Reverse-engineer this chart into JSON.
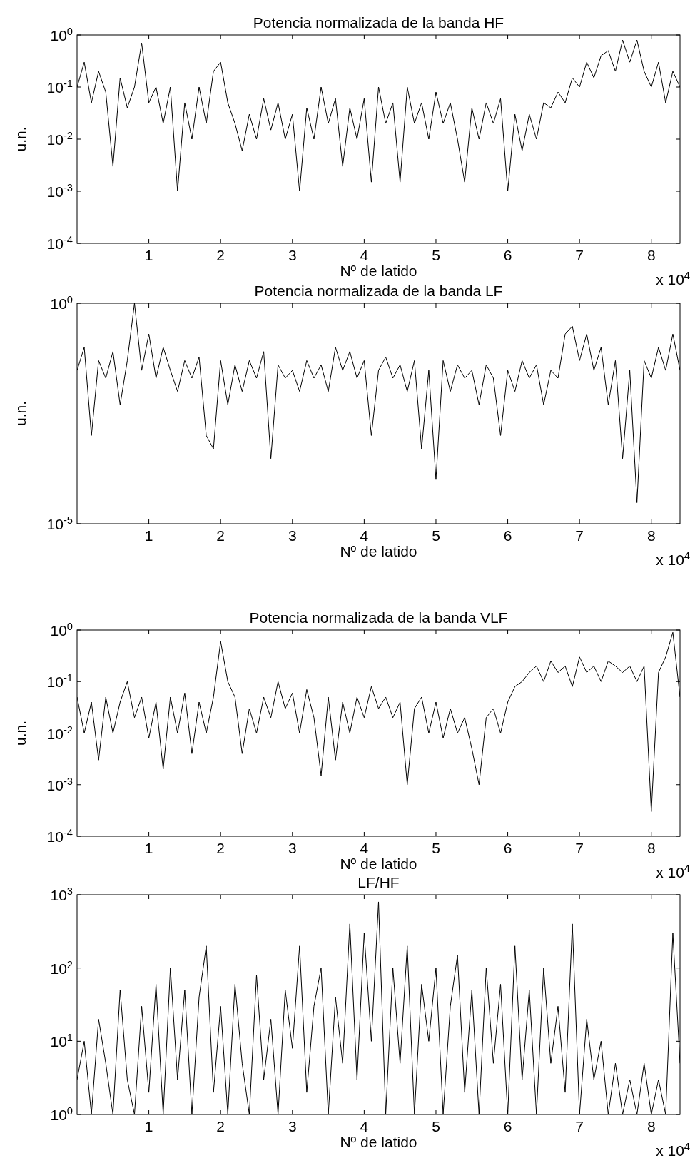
{
  "chart_data": [
    {
      "type": "line",
      "title": "Potencia normalizada de la banda HF",
      "xlabel": "Nº de latido",
      "ylabel": "u.n.",
      "log": "y",
      "color": "#000000",
      "annotations": [
        "x 10$^{4}$"
      ],
      "xlim": [
        0,
        8.4
      ],
      "xticks": [
        1,
        2,
        3,
        4,
        5,
        6,
        7,
        8
      ],
      "ylim": [
        0.0001,
        1
      ],
      "yticks": [
        {
          "value": 0.0001,
          "label": "10$^{-4}$"
        },
        {
          "value": 0.001,
          "label": "10$^{-3}$"
        },
        {
          "value": 0.01,
          "label": "10$^{-2}$"
        },
        {
          "value": 0.1,
          "label": "10$^{-1}$"
        },
        {
          "value": 1,
          "label": "10$^{0}$"
        }
      ],
      "x": [
        0,
        0.1,
        0.2,
        0.3,
        0.4,
        0.5,
        0.6,
        0.7,
        0.8,
        0.9,
        1,
        1.1,
        1.2,
        1.3,
        1.4,
        1.5,
        1.6,
        1.7,
        1.8,
        1.9,
        2,
        2.1,
        2.2,
        2.3,
        2.4,
        2.5,
        2.6,
        2.7,
        2.8,
        2.9,
        3,
        3.1,
        3.2,
        3.3,
        3.4,
        3.5,
        3.6,
        3.7,
        3.8,
        3.9,
        4,
        4.1,
        4.2,
        4.3,
        4.4,
        4.5,
        4.6,
        4.7,
        4.8,
        4.9,
        5,
        5.1,
        5.2,
        5.3,
        5.4,
        5.5,
        5.6,
        5.7,
        5.8,
        5.9,
        6,
        6.1,
        6.2,
        6.3,
        6.4,
        6.5,
        6.6,
        6.7,
        6.8,
        6.9,
        7,
        7.1,
        7.2,
        7.3,
        7.4,
        7.5,
        7.6,
        7.7,
        7.8,
        7.9,
        8,
        8.1,
        8.2,
        8.3,
        8.4
      ],
      "values": [
        0.1,
        0.3,
        0.05,
        0.2,
        0.08,
        0.003,
        0.15,
        0.04,
        0.1,
        0.7,
        0.05,
        0.1,
        0.02,
        0.1,
        0.001,
        0.05,
        0.01,
        0.1,
        0.02,
        0.2,
        0.3,
        0.05,
        0.02,
        0.006,
        0.03,
        0.01,
        0.06,
        0.015,
        0.05,
        0.01,
        0.03,
        0.001,
        0.04,
        0.01,
        0.1,
        0.02,
        0.06,
        0.003,
        0.04,
        0.01,
        0.06,
        0.0015,
        0.1,
        0.02,
        0.05,
        0.0015,
        0.1,
        0.02,
        0.05,
        0.01,
        0.08,
        0.02,
        0.05,
        0.01,
        0.0015,
        0.04,
        0.01,
        0.05,
        0.02,
        0.06,
        0.001,
        0.03,
        0.006,
        0.03,
        0.01,
        0.05,
        0.04,
        0.08,
        0.05,
        0.15,
        0.1,
        0.3,
        0.15,
        0.4,
        0.5,
        0.2,
        0.8,
        0.3,
        0.8,
        0.2,
        0.1,
        0.3,
        0.05,
        0.2,
        0.1
      ]
    },
    {
      "type": "line",
      "title": "Potencia normalizada de la banda LF",
      "xlabel": "Nº de latido",
      "ylabel": "u.n.",
      "log": "y",
      "color": "#000000",
      "annotations": [
        "x 10$^{4}$"
      ],
      "xlim": [
        0,
        8.4
      ],
      "xticks": [
        1,
        2,
        3,
        4,
        5,
        6,
        7,
        8
      ],
      "ylim": [
        1e-05,
        1
      ],
      "yticks": [
        {
          "value": 1e-05,
          "label": "10$^{-5}$"
        },
        {
          "value": 1,
          "label": "10$^{0}$"
        }
      ],
      "x": [
        0,
        0.1,
        0.2,
        0.3,
        0.4,
        0.5,
        0.6,
        0.7,
        0.8,
        0.9,
        1,
        1.1,
        1.2,
        1.3,
        1.4,
        1.5,
        1.6,
        1.7,
        1.8,
        1.9,
        2,
        2.1,
        2.2,
        2.3,
        2.4,
        2.5,
        2.6,
        2.7,
        2.8,
        2.9,
        3,
        3.1,
        3.2,
        3.3,
        3.4,
        3.5,
        3.6,
        3.7,
        3.8,
        3.9,
        4,
        4.1,
        4.2,
        4.3,
        4.4,
        4.5,
        4.6,
        4.7,
        4.8,
        4.9,
        5,
        5.1,
        5.2,
        5.3,
        5.4,
        5.5,
        5.6,
        5.7,
        5.8,
        5.9,
        6,
        6.1,
        6.2,
        6.3,
        6.4,
        6.5,
        6.6,
        6.7,
        6.8,
        6.9,
        7,
        7.1,
        7.2,
        7.3,
        7.4,
        7.5,
        7.6,
        7.7,
        7.8,
        7.9,
        8,
        8.1,
        8.2,
        8.3,
        8.4
      ],
      "values": [
        0.03,
        0.1,
        0.001,
        0.05,
        0.02,
        0.08,
        0.005,
        0.05,
        1,
        0.03,
        0.2,
        0.02,
        0.1,
        0.03,
        0.01,
        0.05,
        0.02,
        0.06,
        0.001,
        0.0005,
        0.05,
        0.005,
        0.04,
        0.01,
        0.05,
        0.02,
        0.08,
        0.0003,
        0.04,
        0.02,
        0.03,
        0.01,
        0.05,
        0.02,
        0.04,
        0.01,
        0.1,
        0.03,
        0.08,
        0.02,
        0.05,
        0.001,
        0.03,
        0.06,
        0.02,
        0.04,
        0.01,
        0.05,
        0.0005,
        0.03,
        0.0001,
        0.05,
        0.01,
        0.04,
        0.02,
        0.03,
        0.005,
        0.04,
        0.02,
        0.001,
        0.03,
        0.01,
        0.05,
        0.02,
        0.04,
        0.005,
        0.03,
        0.02,
        0.2,
        0.3,
        0.05,
        0.2,
        0.03,
        0.1,
        0.005,
        0.05,
        0.0003,
        0.03,
        3e-05,
        0.05,
        0.02,
        0.1,
        0.03,
        0.2,
        0.03
      ]
    },
    {
      "type": "line",
      "title": "Potencia normalizada de la banda VLF",
      "xlabel": "Nº de latido",
      "ylabel": "u.n.",
      "log": "y",
      "color": "#000000",
      "annotations": [
        "x 10$^{4}$"
      ],
      "xlim": [
        0,
        8.4
      ],
      "xticks": [
        1,
        2,
        3,
        4,
        5,
        6,
        7,
        8
      ],
      "ylim": [
        0.0001,
        1
      ],
      "yticks": [
        {
          "value": 0.0001,
          "label": "10$^{-4}$"
        },
        {
          "value": 0.001,
          "label": "10$^{-3}$"
        },
        {
          "value": 0.01,
          "label": "10$^{-2}$"
        },
        {
          "value": 0.1,
          "label": "10$^{-1}$"
        },
        {
          "value": 1,
          "label": "10$^{0}$"
        }
      ],
      "x": [
        0,
        0.1,
        0.2,
        0.3,
        0.4,
        0.5,
        0.6,
        0.7,
        0.8,
        0.9,
        1,
        1.1,
        1.2,
        1.3,
        1.4,
        1.5,
        1.6,
        1.7,
        1.8,
        1.9,
        2,
        2.1,
        2.2,
        2.3,
        2.4,
        2.5,
        2.6,
        2.7,
        2.8,
        2.9,
        3,
        3.1,
        3.2,
        3.3,
        3.4,
        3.5,
        3.6,
        3.7,
        3.8,
        3.9,
        4,
        4.1,
        4.2,
        4.3,
        4.4,
        4.5,
        4.6,
        4.7,
        4.8,
        4.9,
        5,
        5.1,
        5.2,
        5.3,
        5.4,
        5.5,
        5.6,
        5.7,
        5.8,
        5.9,
        6,
        6.1,
        6.2,
        6.3,
        6.4,
        6.5,
        6.6,
        6.7,
        6.8,
        6.9,
        7,
        7.1,
        7.2,
        7.3,
        7.4,
        7.5,
        7.6,
        7.7,
        7.8,
        7.9,
        8,
        8.1,
        8.2,
        8.3,
        8.4
      ],
      "values": [
        0.05,
        0.01,
        0.04,
        0.003,
        0.05,
        0.01,
        0.04,
        0.1,
        0.02,
        0.05,
        0.008,
        0.04,
        0.002,
        0.05,
        0.01,
        0.06,
        0.004,
        0.04,
        0.01,
        0.05,
        0.6,
        0.1,
        0.05,
        0.004,
        0.03,
        0.01,
        0.05,
        0.02,
        0.1,
        0.03,
        0.06,
        0.01,
        0.07,
        0.02,
        0.0015,
        0.05,
        0.003,
        0.04,
        0.01,
        0.05,
        0.02,
        0.08,
        0.03,
        0.05,
        0.02,
        0.04,
        0.001,
        0.03,
        0.05,
        0.01,
        0.04,
        0.008,
        0.03,
        0.01,
        0.02,
        0.005,
        0.001,
        0.02,
        0.03,
        0.01,
        0.04,
        0.08,
        0.1,
        0.15,
        0.2,
        0.1,
        0.25,
        0.15,
        0.2,
        0.08,
        0.3,
        0.15,
        0.2,
        0.1,
        0.25,
        0.2,
        0.15,
        0.2,
        0.1,
        0.2,
        0.0003,
        0.15,
        0.3,
        0.9,
        0.05
      ]
    },
    {
      "type": "line",
      "title": "LF/HF",
      "xlabel": "Nº de latido",
      "log": "y",
      "color": "#000000",
      "annotations": [
        "x 10$^{4}$"
      ],
      "xlim": [
        0,
        8.4
      ],
      "xticks": [
        1,
        2,
        3,
        4,
        5,
        6,
        7,
        8
      ],
      "ylim": [
        1,
        1000
      ],
      "yticks": [
        {
          "value": 1,
          "label": "10$^{0}$"
        },
        {
          "value": 10,
          "label": "10$^{1}$"
        },
        {
          "value": 100,
          "label": "10$^{2}$"
        },
        {
          "value": 1000,
          "label": "10$^{3}$"
        }
      ],
      "x": [
        0,
        0.1,
        0.2,
        0.3,
        0.4,
        0.5,
        0.6,
        0.7,
        0.8,
        0.9,
        1,
        1.1,
        1.2,
        1.3,
        1.4,
        1.5,
        1.6,
        1.7,
        1.8,
        1.9,
        2,
        2.1,
        2.2,
        2.3,
        2.4,
        2.5,
        2.6,
        2.7,
        2.8,
        2.9,
        3,
        3.1,
        3.2,
        3.3,
        3.4,
        3.5,
        3.6,
        3.7,
        3.8,
        3.9,
        4,
        4.1,
        4.2,
        4.3,
        4.4,
        4.5,
        4.6,
        4.7,
        4.8,
        4.9,
        5,
        5.1,
        5.2,
        5.3,
        5.4,
        5.5,
        5.6,
        5.7,
        5.8,
        5.9,
        6,
        6.1,
        6.2,
        6.3,
        6.4,
        6.5,
        6.6,
        6.7,
        6.8,
        6.9,
        7,
        7.1,
        7.2,
        7.3,
        7.4,
        7.5,
        7.6,
        7.7,
        7.8,
        7.9,
        8,
        8.1,
        8.2,
        8.3,
        8.4
      ],
      "values": [
        3,
        10,
        1,
        20,
        5,
        1,
        50,
        3,
        1,
        30,
        2,
        60,
        1,
        100,
        3,
        50,
        1,
        40,
        200,
        2,
        30,
        1,
        60,
        5,
        1,
        80,
        3,
        20,
        1,
        50,
        8,
        200,
        2,
        30,
        100,
        1,
        40,
        5,
        400,
        3,
        300,
        10,
        800,
        1,
        100,
        5,
        200,
        1,
        60,
        10,
        100,
        1,
        30,
        150,
        2,
        50,
        1,
        100,
        5,
        60,
        1,
        200,
        3,
        50,
        1,
        100,
        5,
        30,
        2,
        400,
        1,
        20,
        3,
        10,
        1,
        5,
        1,
        3,
        1,
        5,
        1,
        3,
        1,
        300,
        5
      ]
    }
  ]
}
